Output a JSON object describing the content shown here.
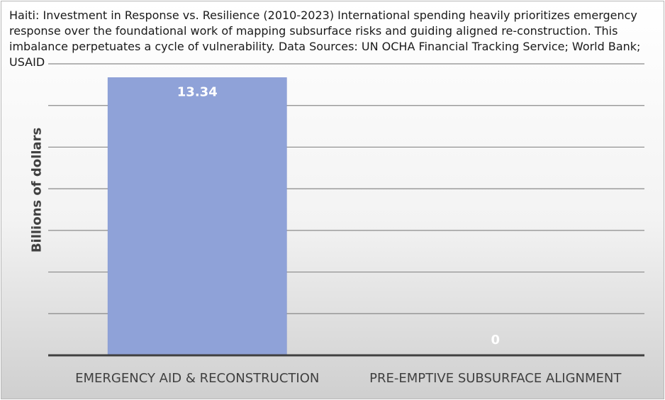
{
  "chart_data": {
    "type": "bar",
    "title": "Haiti: Investment in Response vs. Resilience (2010-2023) International spending heavily prioritizes emergency response over the foundational work of mapping subsurface risks and guiding aligned re-construction. This imbalance perpetuates a cycle of vulnerability. Data Sources: UN OCHA Financial Tracking Service; World Bank; USAID",
    "xlabel": "",
    "ylabel": "Billions of dollars",
    "categories": [
      "EMERGENCY AID & RECONSTRUCTION",
      "PRE-EMPTIVE SUBSURFACE ALIGNMENT"
    ],
    "values": [
      13.34,
      0
    ],
    "data_labels": [
      "13.34",
      "0"
    ],
    "ylim": [
      0,
      14
    ],
    "grid": true,
    "tick_labels_shown": false,
    "legend": "none"
  },
  "colors": {
    "bar": "#8fa2d8",
    "bar_edge": "#7f93cf",
    "gridline": "#8a8a8a",
    "axis": "#404040",
    "tick_text": "#404040",
    "data_label": "#ffffff"
  }
}
